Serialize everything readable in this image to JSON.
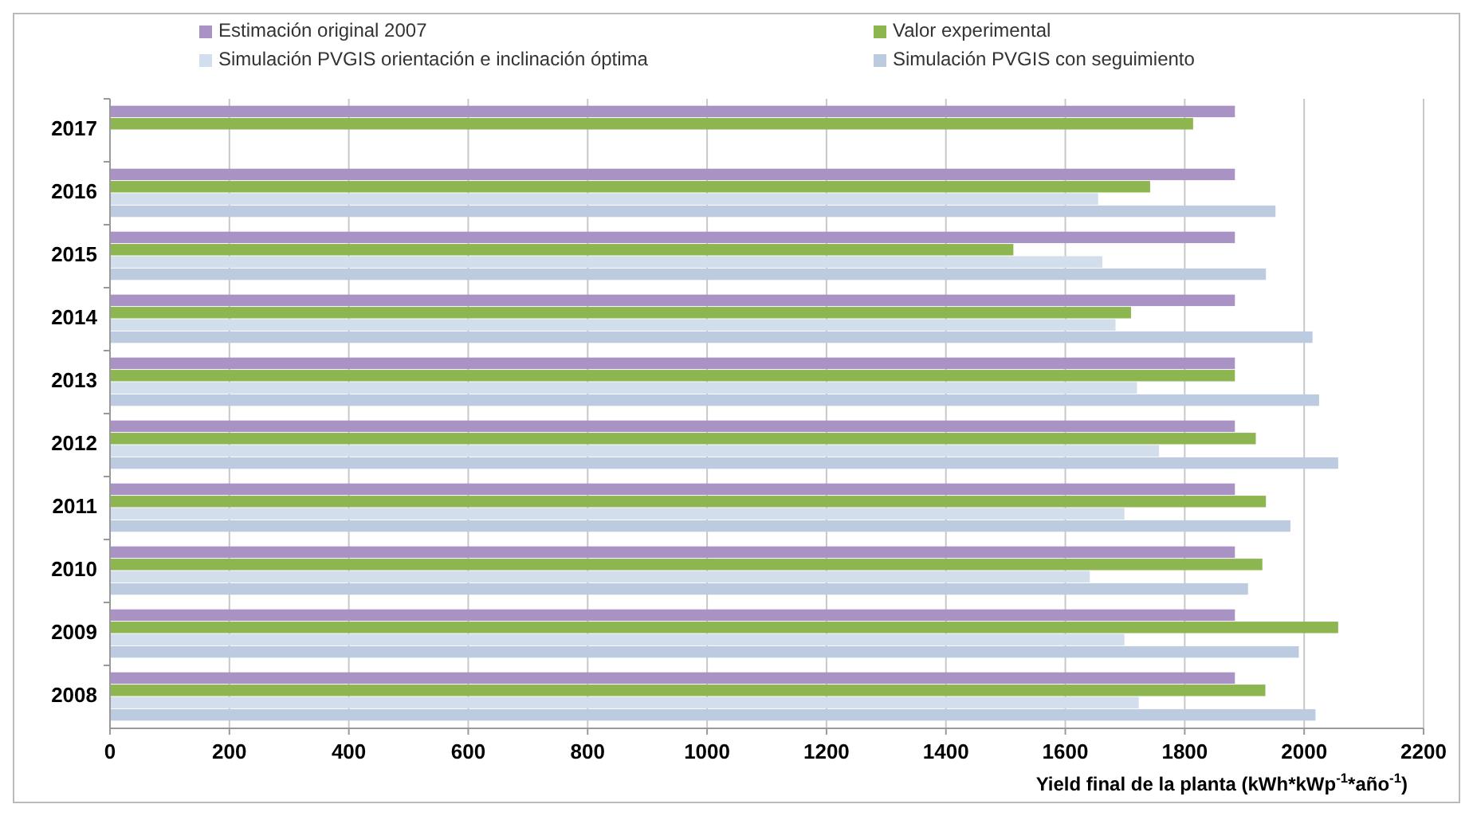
{
  "chart_data": {
    "type": "bar",
    "orientation": "horizontal",
    "categories": [
      "2017",
      "2016",
      "2015",
      "2014",
      "2013",
      "2012",
      "2011",
      "2010",
      "2009",
      "2008"
    ],
    "series": [
      {
        "name": "Estimación original 2007",
        "color": "#a993c4",
        "values": [
          1884,
          1884,
          1884,
          1884,
          1884,
          1884,
          1884,
          1884,
          1884,
          1884
        ]
      },
      {
        "name": "Valor experimental",
        "color": "#8db650",
        "values": [
          1814,
          1742,
          1513,
          1710,
          1884,
          1919,
          1936,
          1930,
          2057,
          1935
        ]
      },
      {
        "name": "Simulación PVGIS orientación e inclinación óptima",
        "color": "#d3deec",
        "values": [
          null,
          1655,
          1662,
          1684,
          1720,
          1757,
          1699,
          1641,
          1699,
          1723
        ]
      },
      {
        "name": "Simulación PVGIS con seguimiento",
        "color": "#bccbe0",
        "values": [
          null,
          1952,
          1936,
          2014,
          2025,
          2057,
          1977,
          1906,
          1991,
          2019
        ]
      }
    ],
    "xlim": [
      0,
      2200
    ],
    "xticks": [
      0,
      200,
      400,
      600,
      800,
      1000,
      1200,
      1400,
      1600,
      1800,
      2000,
      2200
    ],
    "xlabel": "Yield final de la planta (kWh*kWp$^{-1}$*año$^{-1}$)",
    "grid": "x",
    "legend": "top"
  }
}
